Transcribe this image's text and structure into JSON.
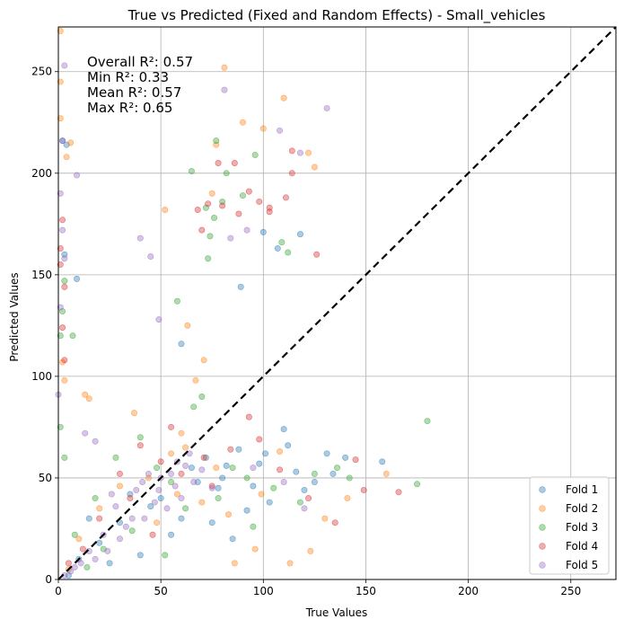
{
  "chart_data": {
    "type": "scatter",
    "title": "True vs Predicted (Fixed and Random Effects) - Small_vehicles",
    "xlabel": "True Values",
    "ylabel": "Predicted Values",
    "xlim": [
      0,
      272
    ],
    "ylim": [
      0,
      272
    ],
    "xticks": [
      0,
      50,
      100,
      150,
      200,
      250
    ],
    "yticks": [
      0,
      50,
      100,
      150,
      200,
      250
    ],
    "grid": true,
    "legend_position": "lower-right",
    "reference_line": {
      "style": "dashed",
      "color": "#000000",
      "from": [
        0,
        0
      ],
      "to": [
        272,
        272
      ]
    },
    "annotations": [
      "Overall R²: 0.57",
      "Min R²: 0.33",
      "Mean R²: 0.57",
      "Max R²: 0.65"
    ],
    "series": [
      {
        "name": "Fold 1",
        "color": "#1f77b4",
        "points": [
          [
            2,
            216
          ],
          [
            4,
            214
          ],
          [
            3,
            160
          ],
          [
            9,
            148
          ],
          [
            60,
            116
          ],
          [
            89,
            144
          ],
          [
            100,
            171
          ],
          [
            107,
            163
          ],
          [
            118,
            170
          ],
          [
            110,
            74
          ],
          [
            158,
            58
          ],
          [
            140,
            60
          ],
          [
            131,
            62
          ],
          [
            80,
            50
          ],
          [
            95,
            46
          ],
          [
            120,
            44
          ],
          [
            103,
            38
          ],
          [
            85,
            20
          ],
          [
            75,
            28
          ],
          [
            60,
            30
          ],
          [
            45,
            36
          ],
          [
            30,
            28
          ],
          [
            20,
            18
          ],
          [
            10,
            10
          ],
          [
            35,
            42
          ],
          [
            50,
            40
          ],
          [
            65,
            55
          ],
          [
            72,
            60
          ],
          [
            88,
            64
          ],
          [
            98,
            57
          ],
          [
            112,
            66
          ],
          [
            125,
            48
          ],
          [
            134,
            52
          ],
          [
            92,
            34
          ],
          [
            78,
            45
          ],
          [
            55,
            22
          ],
          [
            40,
            12
          ],
          [
            25,
            8
          ],
          [
            15,
            30
          ],
          [
            5,
            2
          ],
          [
            68,
            48
          ],
          [
            82,
            56
          ],
          [
            101,
            62
          ],
          [
            116,
            53
          ]
        ]
      },
      {
        "name": "Fold 2",
        "color": "#ff7f0e",
        "points": [
          [
            1,
            270
          ],
          [
            1,
            245
          ],
          [
            1,
            227
          ],
          [
            4,
            208
          ],
          [
            6,
            215
          ],
          [
            52,
            182
          ],
          [
            90,
            225
          ],
          [
            100,
            222
          ],
          [
            110,
            237
          ],
          [
            122,
            210
          ],
          [
            125,
            203
          ],
          [
            81,
            252
          ],
          [
            77,
            214
          ],
          [
            75,
            190
          ],
          [
            63,
            125
          ],
          [
            62,
            65
          ],
          [
            71,
            108
          ],
          [
            67,
            98
          ],
          [
            13,
            91
          ],
          [
            15,
            89
          ],
          [
            37,
            82
          ],
          [
            60,
            72
          ],
          [
            77,
            55
          ],
          [
            108,
            63
          ],
          [
            160,
            52
          ],
          [
            123,
            14
          ],
          [
            86,
            8
          ],
          [
            96,
            15
          ],
          [
            113,
            8
          ],
          [
            141,
            40
          ],
          [
            55,
            62
          ],
          [
            44,
            50
          ],
          [
            30,
            46
          ],
          [
            20,
            35
          ],
          [
            10,
            20
          ],
          [
            5,
            5
          ],
          [
            48,
            28
          ],
          [
            58,
            42
          ],
          [
            70,
            38
          ],
          [
            83,
            32
          ],
          [
            99,
            42
          ],
          [
            130,
            30
          ],
          [
            2,
            107
          ],
          [
            3,
            98
          ]
        ]
      },
      {
        "name": "Fold 3",
        "color": "#2ca02c",
        "points": [
          [
            77,
            216
          ],
          [
            96,
            209
          ],
          [
            82,
            200
          ],
          [
            65,
            201
          ],
          [
            72,
            183
          ],
          [
            76,
            178
          ],
          [
            74,
            169
          ],
          [
            73,
            158
          ],
          [
            58,
            137
          ],
          [
            109,
            166
          ],
          [
            112,
            161
          ],
          [
            80,
            186
          ],
          [
            90,
            189
          ],
          [
            3,
            147
          ],
          [
            2,
            132
          ],
          [
            1,
            120
          ],
          [
            7,
            120
          ],
          [
            1,
            75
          ],
          [
            180,
            78
          ],
          [
            175,
            47
          ],
          [
            142,
            50
          ],
          [
            136,
            55
          ],
          [
            66,
            85
          ],
          [
            70,
            90
          ],
          [
            40,
            70
          ],
          [
            28,
            60
          ],
          [
            18,
            40
          ],
          [
            8,
            22
          ],
          [
            48,
            55
          ],
          [
            55,
            48
          ],
          [
            62,
            35
          ],
          [
            85,
            55
          ],
          [
            105,
            45
          ],
          [
            118,
            38
          ],
          [
            95,
            26
          ],
          [
            125,
            52
          ],
          [
            22,
            15
          ],
          [
            14,
            6
          ],
          [
            36,
            24
          ],
          [
            52,
            12
          ],
          [
            78,
            40
          ],
          [
            92,
            50
          ],
          [
            3,
            60
          ]
        ]
      },
      {
        "name": "Fold 4",
        "color": "#d62728",
        "points": [
          [
            70,
            172
          ],
          [
            86,
            205
          ],
          [
            93,
            191
          ],
          [
            103,
            183
          ],
          [
            114,
            200
          ],
          [
            103,
            181
          ],
          [
            114,
            211
          ],
          [
            73,
            185
          ],
          [
            98,
            186
          ],
          [
            111,
            188
          ],
          [
            80,
            184
          ],
          [
            68,
            182
          ],
          [
            126,
            160
          ],
          [
            78,
            205
          ],
          [
            88,
            180
          ],
          [
            1,
            163
          ],
          [
            2,
            177
          ],
          [
            1,
            155
          ],
          [
            3,
            144
          ],
          [
            2,
            124
          ],
          [
            3,
            108
          ],
          [
            98,
            69
          ],
          [
            71,
            60
          ],
          [
            55,
            75
          ],
          [
            40,
            66
          ],
          [
            149,
            44
          ],
          [
            166,
            43
          ],
          [
            145,
            59
          ],
          [
            93,
            80
          ],
          [
            35,
            40
          ],
          [
            20,
            30
          ],
          [
            12,
            15
          ],
          [
            5,
            8
          ],
          [
            46,
            22
          ],
          [
            60,
            52
          ],
          [
            75,
            46
          ],
          [
            84,
            64
          ],
          [
            108,
            54
          ],
          [
            122,
            40
          ],
          [
            135,
            28
          ],
          [
            30,
            52
          ],
          [
            50,
            58
          ]
        ]
      },
      {
        "name": "Fold 5",
        "color": "#9467bd",
        "points": [
          [
            81,
            241
          ],
          [
            3,
            253
          ],
          [
            2,
            216
          ],
          [
            9,
            199
          ],
          [
            1,
            190
          ],
          [
            2,
            172
          ],
          [
            3,
            158
          ],
          [
            40,
            168
          ],
          [
            45,
            159
          ],
          [
            49,
            128
          ],
          [
            84,
            168
          ],
          [
            92,
            172
          ],
          [
            118,
            210
          ],
          [
            131,
            232
          ],
          [
            108,
            221
          ],
          [
            1,
            134
          ],
          [
            0,
            91
          ],
          [
            13,
            72
          ],
          [
            18,
            68
          ],
          [
            42,
            30
          ],
          [
            38,
            44
          ],
          [
            28,
            36
          ],
          [
            22,
            22
          ],
          [
            15,
            14
          ],
          [
            8,
            6
          ],
          [
            3,
            2
          ],
          [
            50,
            50
          ],
          [
            57,
            46
          ],
          [
            62,
            56
          ],
          [
            47,
            38
          ],
          [
            33,
            26
          ],
          [
            26,
            42
          ],
          [
            44,
            52
          ],
          [
            53,
            35
          ],
          [
            60,
            40
          ],
          [
            66,
            48
          ],
          [
            70,
            54
          ],
          [
            36,
            30
          ],
          [
            30,
            20
          ],
          [
            24,
            14
          ],
          [
            18,
            10
          ],
          [
            11,
            8
          ],
          [
            6,
            4
          ],
          [
            58,
            58
          ],
          [
            64,
            62
          ],
          [
            41,
            48
          ],
          [
            49,
            44
          ],
          [
            55,
            52
          ],
          [
            75,
            45
          ],
          [
            95,
            55
          ],
          [
            110,
            48
          ],
          [
            120,
            35
          ]
        ]
      }
    ]
  }
}
